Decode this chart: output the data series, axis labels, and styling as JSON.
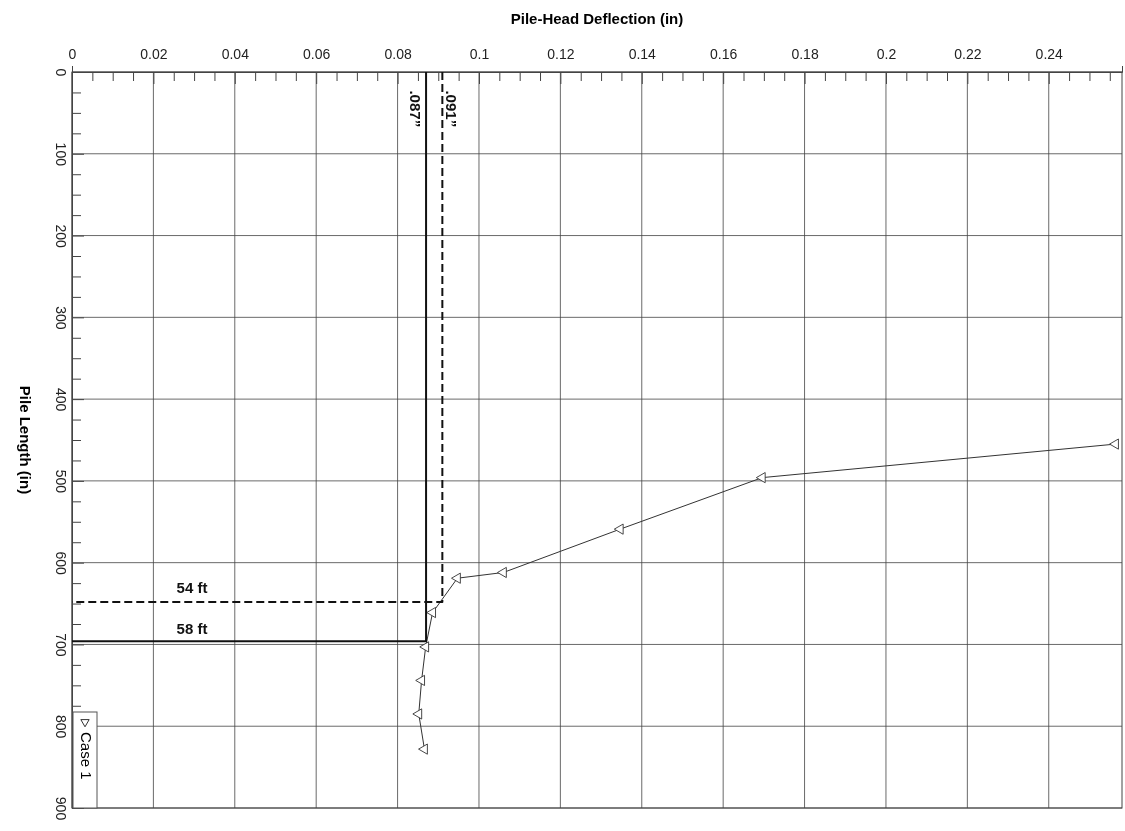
{
  "chart_data": {
    "type": "line",
    "xlabel": "Pile-Head Deflection (in)",
    "ylabel": "Pile Length (in)",
    "xlim": [
      0,
      0.258
    ],
    "ylim": [
      900,
      0
    ],
    "xticks": [
      0,
      {
        "value": 0.005,
        "label": null
      },
      {
        "value": 0.01,
        "label": null
      },
      {
        "value": 0.015,
        "label": null
      },
      0.02,
      {
        "value": 0.025,
        "label": null
      },
      {
        "value": 0.03,
        "label": null
      },
      {
        "value": 0.035,
        "label": null
      },
      0.04,
      {
        "value": 0.045,
        "label": null
      },
      {
        "value": 0.05,
        "label": null
      },
      {
        "value": 0.055,
        "label": null
      },
      0.06,
      {
        "value": 0.065,
        "label": null
      },
      {
        "value": 0.07,
        "label": null
      },
      {
        "value": 0.075,
        "label": null
      },
      0.08,
      {
        "value": 0.085,
        "label": null
      },
      {
        "value": 0.09,
        "label": null
      },
      {
        "value": 0.095,
        "label": null
      },
      0.1,
      {
        "value": 0.105,
        "label": null
      },
      {
        "value": 0.11,
        "label": null
      },
      {
        "value": 0.115,
        "label": null
      },
      0.12,
      {
        "value": 0.125,
        "label": null
      },
      {
        "value": 0.13,
        "label": null
      },
      {
        "value": 0.135,
        "label": null
      },
      0.14,
      {
        "value": 0.145,
        "label": null
      },
      {
        "value": 0.15,
        "label": null
      },
      {
        "value": 0.155,
        "label": null
      },
      0.16,
      {
        "value": 0.165,
        "label": null
      },
      {
        "value": 0.17,
        "label": null
      },
      {
        "value": 0.175,
        "label": null
      },
      0.18,
      {
        "value": 0.185,
        "label": null
      },
      {
        "value": 0.19,
        "label": null
      },
      {
        "value": 0.195,
        "label": null
      },
      0.2,
      {
        "value": 0.205,
        "label": null
      },
      {
        "value": 0.21,
        "label": null
      },
      {
        "value": 0.215,
        "label": null
      },
      0.22,
      {
        "value": 0.225,
        "label": null
      },
      {
        "value": 0.23,
        "label": null
      },
      {
        "value": 0.235,
        "label": null
      },
      0.24,
      {
        "value": 0.245,
        "label": null
      },
      {
        "value": 0.25,
        "label": null
      },
      {
        "value": 0.255,
        "label": null
      }
    ],
    "yticks": [
      0,
      {
        "value": 25,
        "label": null
      },
      {
        "value": 50,
        "label": null
      },
      {
        "value": 75,
        "label": null
      },
      100,
      {
        "value": 125,
        "label": null
      },
      {
        "value": 150,
        "label": null
      },
      {
        "value": 175,
        "label": null
      },
      200,
      {
        "value": 225,
        "label": null
      },
      {
        "value": 250,
        "label": null
      },
      {
        "value": 275,
        "label": null
      },
      300,
      {
        "value": 325,
        "label": null
      },
      {
        "value": 350,
        "label": null
      },
      {
        "value": 375,
        "label": null
      },
      400,
      {
        "value": 425,
        "label": null
      },
      {
        "value": 450,
        "label": null
      },
      {
        "value": 475,
        "label": null
      },
      500,
      {
        "value": 525,
        "label": null
      },
      {
        "value": 550,
        "label": null
      },
      {
        "value": 575,
        "label": null
      },
      600,
      {
        "value": 625,
        "label": null
      },
      {
        "value": 650,
        "label": null
      },
      {
        "value": 675,
        "label": null
      },
      700,
      {
        "value": 725,
        "label": null
      },
      {
        "value": 750,
        "label": null
      },
      {
        "value": 775,
        "label": null
      },
      800,
      {
        "value": 825,
        "label": null
      },
      {
        "value": 850,
        "label": null
      },
      {
        "value": 875,
        "label": null
      },
      900
    ],
    "grid": true,
    "legend": "bottom left",
    "marker": "triangle",
    "series": [
      {
        "name": "Case 1",
        "color": "#333333",
        "x": [
          0.2564,
          0.1696,
          0.1347,
          0.106,
          0.0947,
          0.0886,
          0.0869,
          0.0859,
          0.0852,
          0.0866
        ],
        "values": [
          455,
          496,
          559,
          612,
          619,
          661,
          703,
          744,
          785,
          828
        ]
      },
      {
        "type": "line",
        "color": "#111111",
        "line_style": "solid",
        "marker": "none",
        "x": [
          0.087,
          0.087,
          0
        ],
        "values": [
          0,
          696,
          696
        ]
      },
      {
        "type": "line",
        "color": "#111111",
        "line_style": "dashed",
        "marker": "none",
        "x": [
          0.091,
          0.091,
          0
        ],
        "values": [
          0,
          648,
          648
        ]
      }
    ],
    "annotations": [
      "54 ft",
      "58 ft",
      ".087”",
      ".091”"
    ]
  }
}
